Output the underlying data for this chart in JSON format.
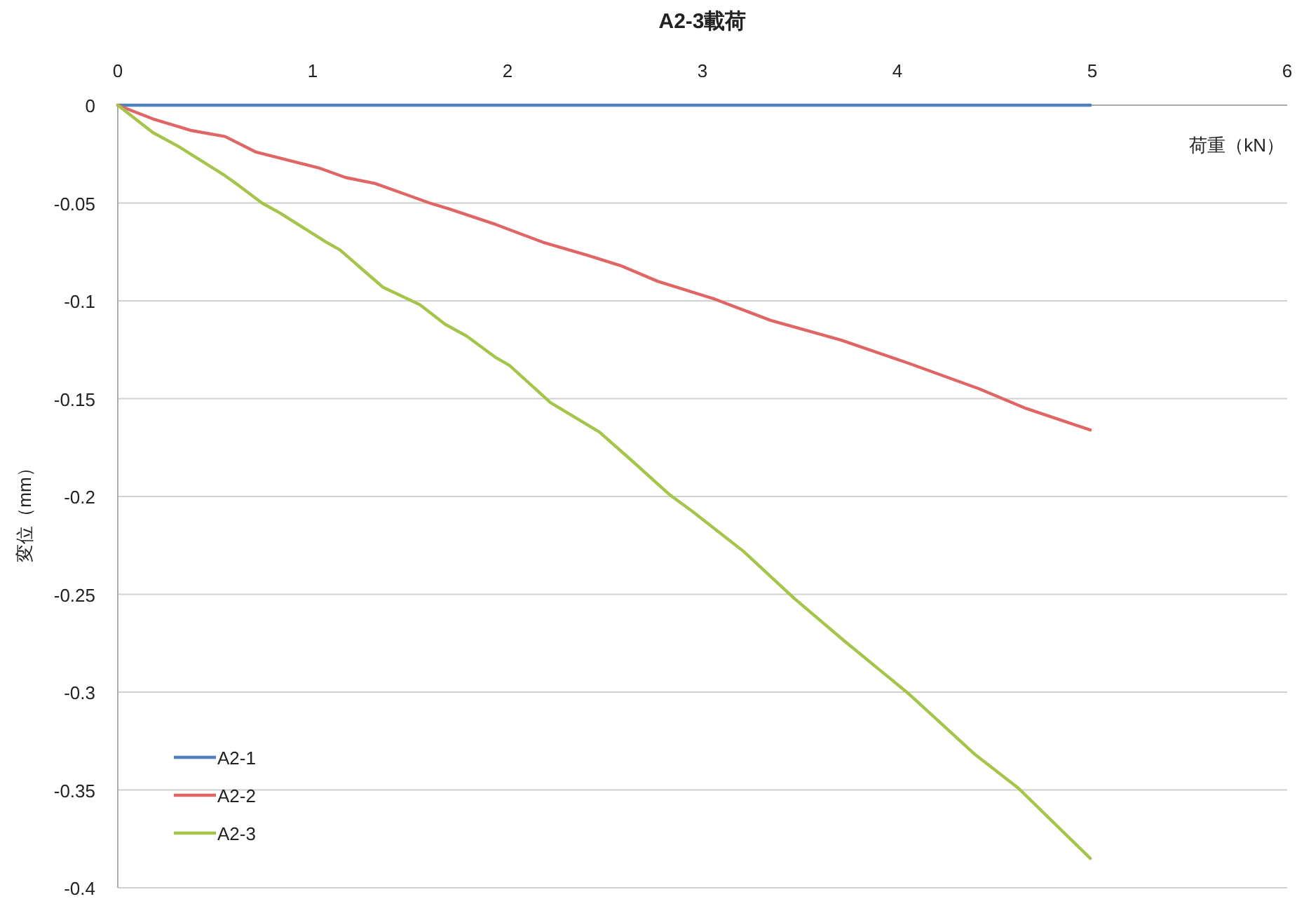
{
  "chart_data": {
    "type": "line",
    "title": "A2-3載荷",
    "xlabel": "荷重（kN）",
    "ylabel": "変位（mm）",
    "xlim": [
      0,
      6
    ],
    "xticks": [
      0,
      1,
      2,
      3,
      4,
      5,
      6
    ],
    "ylim": [
      -0.4,
      0
    ],
    "yticks": [
      0,
      -0.05,
      -0.1,
      -0.15,
      -0.2,
      -0.25,
      -0.3,
      -0.35,
      -0.4
    ],
    "grid": "y",
    "legend": "bottom left",
    "line_style": "solid",
    "series": [
      {
        "name": "A2-1",
        "color": "#4f81bd",
        "x": [
          0,
          4.99
        ],
        "values": [
          0,
          0
        ]
      },
      {
        "name": "A2-2",
        "color": "#e06666",
        "x": [
          0,
          0.18,
          0.38,
          0.55,
          0.71,
          1.03,
          1.17,
          1.32,
          1.46,
          1.6,
          1.7,
          1.94,
          2.18,
          2.42,
          2.58,
          2.77,
          3.06,
          3.35,
          3.71,
          4.06,
          4.42,
          4.66,
          4.99
        ],
        "values": [
          0,
          -0.007,
          -0.013,
          -0.016,
          -0.024,
          -0.032,
          -0.037,
          -0.04,
          -0.045,
          -0.05,
          -0.053,
          -0.061,
          -0.07,
          -0.077,
          -0.082,
          -0.09,
          -0.099,
          -0.11,
          -0.12,
          -0.132,
          -0.145,
          -0.155,
          -0.166
        ]
      },
      {
        "name": "A2-3",
        "color": "#a4c44a",
        "x": [
          0,
          0.18,
          0.31,
          0.55,
          0.62,
          0.74,
          0.83,
          1.07,
          1.14,
          1.36,
          1.55,
          1.68,
          1.79,
          1.94,
          2.01,
          2.22,
          2.47,
          2.63,
          2.83,
          2.94,
          3.21,
          3.47,
          3.73,
          4.06,
          4.4,
          4.62,
          4.99
        ],
        "values": [
          0,
          -0.014,
          -0.021,
          -0.036,
          -0.041,
          -0.05,
          -0.055,
          -0.07,
          -0.074,
          -0.093,
          -0.102,
          -0.112,
          -0.118,
          -0.129,
          -0.133,
          -0.152,
          -0.167,
          -0.181,
          -0.199,
          -0.207,
          -0.228,
          -0.252,
          -0.274,
          -0.301,
          -0.332,
          -0.349,
          -0.385
        ]
      }
    ]
  }
}
